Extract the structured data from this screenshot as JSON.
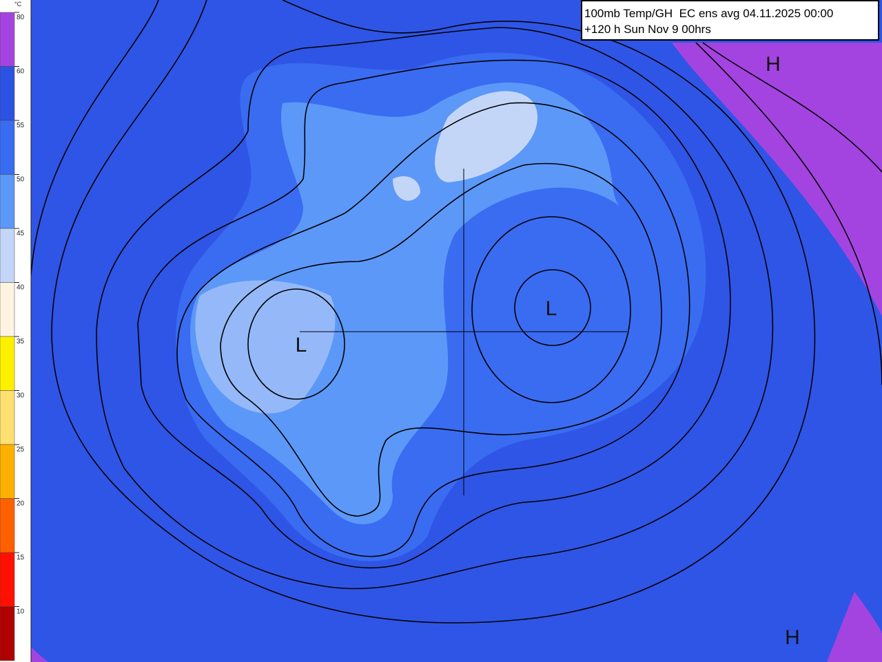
{
  "title": {
    "line1": "100mb Temp/GH  EC ens avg 04.11.2025 00:00",
    "line2": "+120 h Sun Nov 9 00hrs"
  },
  "colorbar": {
    "unit": "°C",
    "levels": [
      {
        "label": "80",
        "color": "#a444e0"
      },
      {
        "label": "60",
        "color": "#2c52e4"
      },
      {
        "label": "55",
        "color": "#3a6cf2"
      },
      {
        "label": "50",
        "color": "#5c98f8"
      },
      {
        "label": "45",
        "color": "#c4d6f8"
      },
      {
        "label": "40",
        "color": "#fff4e2"
      },
      {
        "label": "35",
        "color": "#fff000"
      },
      {
        "label": "30",
        "color": "#ffe070"
      },
      {
        "label": "25",
        "color": "#ffb000"
      },
      {
        "label": "20",
        "color": "#ff6000"
      },
      {
        "label": "15",
        "color": "#ff1000"
      },
      {
        "label": "10",
        "color": "#b00000"
      }
    ]
  },
  "centers": [
    {
      "label": "H"
    },
    {
      "label": "H"
    },
    {
      "label": "L"
    },
    {
      "label": "L"
    }
  ]
}
